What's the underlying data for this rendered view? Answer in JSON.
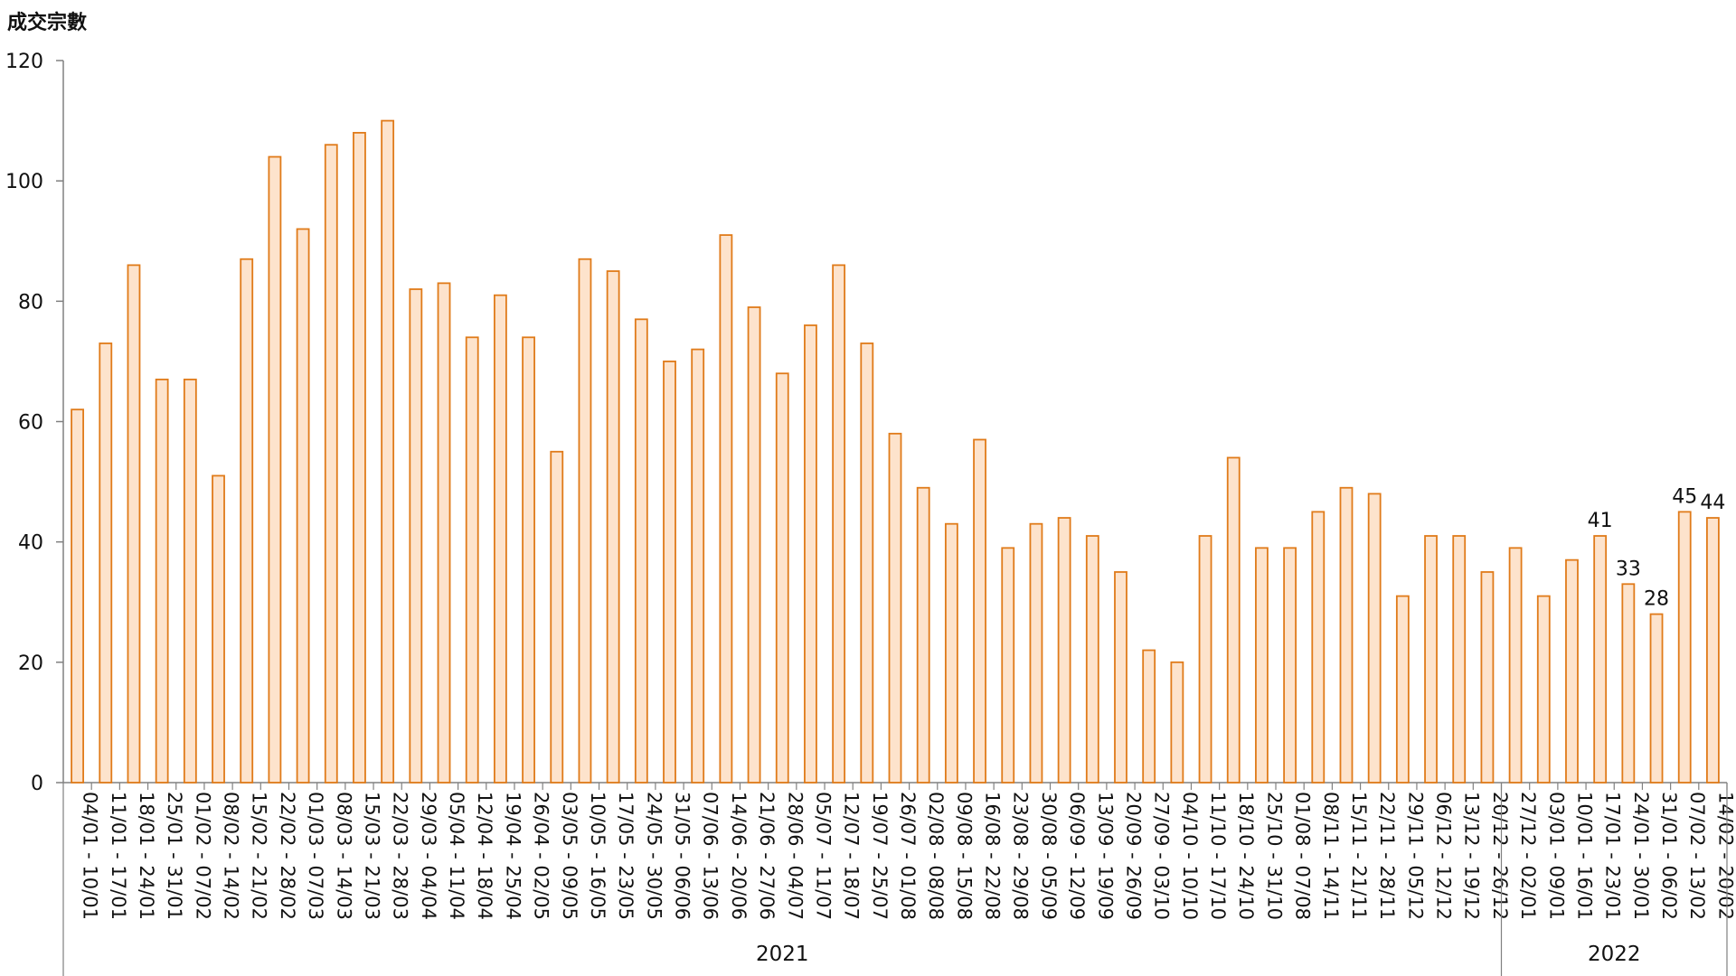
{
  "chart_data": {
    "type": "bar",
    "ylabel": "成交宗數",
    "ylim": [
      0,
      120
    ],
    "yticks": [
      0,
      20,
      40,
      60,
      80,
      100,
      120
    ],
    "grid": false,
    "colors": {
      "bar_fill": "#fde3cc",
      "bar_stroke": "#e07b1a",
      "axis": "#808080"
    },
    "categories": [
      "04/01 - 10/01",
      "11/01 - 17/01",
      "18/01 - 24/01",
      "25/01 - 31/01",
      "01/02 - 07/02",
      "08/02 - 14/02",
      "15/02 - 21/02",
      "22/02 - 28/02",
      "01/03 - 07/03",
      "08/03 - 14/03",
      "15/03 - 21/03",
      "22/03 - 28/03",
      "29/03 - 04/04",
      "05/04 - 11/04",
      "12/04 - 18/04",
      "19/04 - 25/04",
      "26/04 - 02/05",
      "03/05 - 09/05",
      "10/05 - 16/05",
      "17/05 - 23/05",
      "24/05 - 30/05",
      "31/05 - 06/06",
      "07/06 - 13/06",
      "14/06 - 20/06",
      "21/06 - 27/06",
      "28/06 - 04/07",
      "05/07 - 11/07",
      "12/07 - 18/07",
      "19/07 - 25/07",
      "26/07 - 01/08",
      "02/08 - 08/08",
      "09/08 - 15/08",
      "16/08 - 22/08",
      "23/08 - 29/08",
      "30/08 - 05/09",
      "06/09 - 12/09",
      "13/09 - 19/09",
      "20/09 - 26/09",
      "27/09 - 03/10",
      "04/10 - 10/10",
      "11/10 - 17/10",
      "18/10 - 24/10",
      "25/10 - 31/10",
      "01/08 - 07/08",
      "08/11 - 14/11",
      "15/11 - 21/11",
      "22/11 - 28/11",
      "29/11 - 05/12",
      "06/12 - 12/12",
      "13/12 - 19/12",
      "20/12 - 26/12",
      "27/12 - 02/01",
      "03/01 - 09/01",
      "10/01 - 16/01",
      "17/01 - 23/01",
      "24/01 - 30/01",
      "31/01 - 06/02",
      "07/02 - 13/02",
      "14/02 - 20/02"
    ],
    "values": [
      62,
      73,
      86,
      67,
      67,
      51,
      87,
      104,
      92,
      106,
      108,
      110,
      82,
      83,
      74,
      81,
      74,
      55,
      87,
      85,
      77,
      70,
      72,
      91,
      79,
      68,
      76,
      86,
      73,
      58,
      49,
      43,
      57,
      39,
      43,
      44,
      41,
      35,
      22,
      20,
      41,
      54,
      39,
      39,
      45,
      49,
      48,
      31,
      41,
      41,
      35,
      39,
      31,
      37,
      41,
      33,
      28,
      45,
      44
    ],
    "data_labels": {
      "54": "41",
      "55": "33",
      "56": "28",
      "57": "45",
      "58": "44"
    },
    "groups": [
      {
        "label": "2021",
        "start": 0,
        "end": 50
      },
      {
        "label": "2022",
        "start": 51,
        "end": 58
      }
    ]
  }
}
